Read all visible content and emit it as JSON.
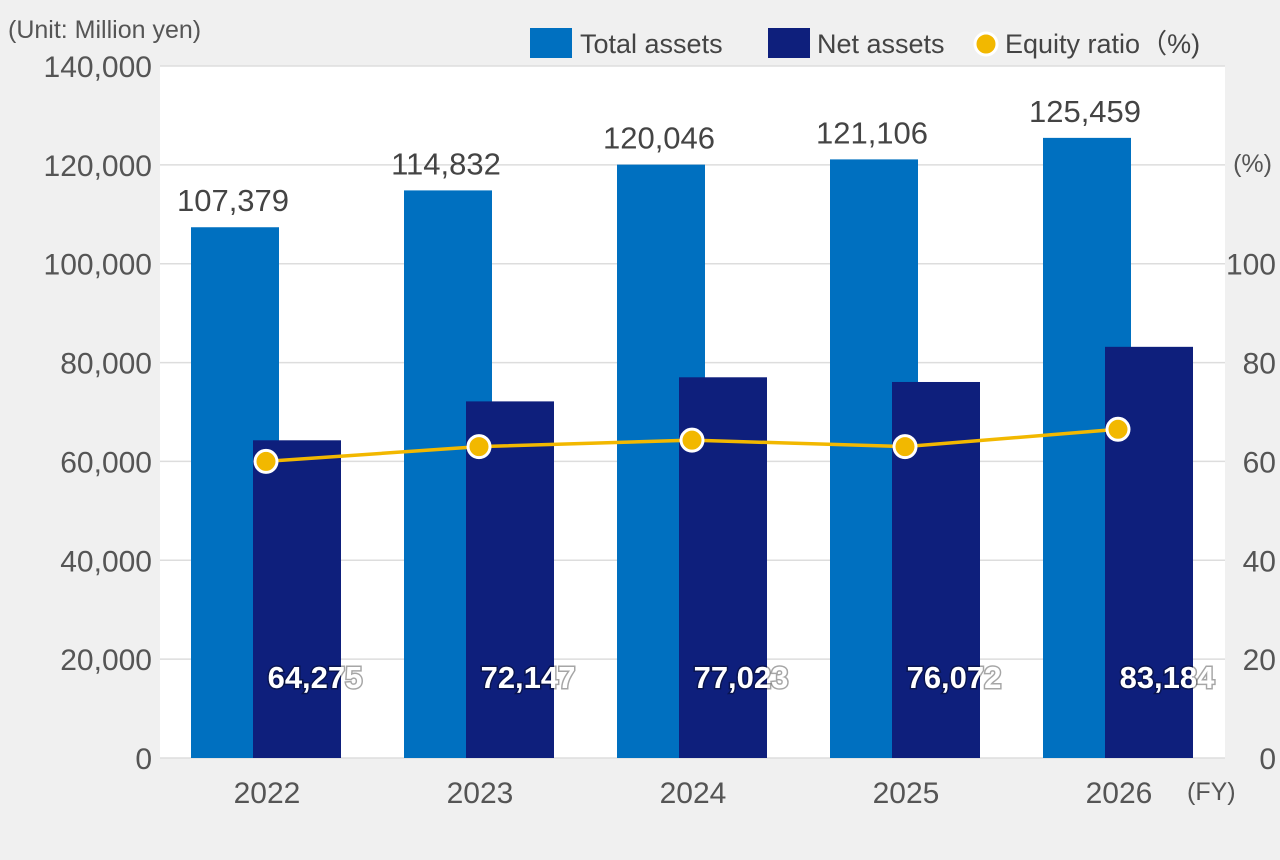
{
  "chart_data": {
    "type": "bar",
    "unit_label": "(Unit: Million yen)",
    "x_unit_label": "(FY)",
    "y2_unit_label": "(%)",
    "categories": [
      "2022",
      "2023",
      "2024",
      "2025",
      "2026"
    ],
    "series": [
      {
        "name": "Total assets",
        "type": "bar",
        "axis": "left",
        "color": "#0070c0",
        "values": [
          107379,
          114832,
          120046,
          121106,
          125459
        ],
        "labels": [
          "107,379",
          "114,832",
          "120,046",
          "121,106",
          "125,459"
        ]
      },
      {
        "name": "Net assets",
        "type": "bar",
        "axis": "left",
        "color": "#0e1f7c",
        "values": [
          64275,
          72147,
          77023,
          76072,
          83184
        ],
        "labels": [
          "64,275",
          "72,147",
          "77,023",
          "76,072",
          "83,184"
        ]
      },
      {
        "name": "Equity ratio（%)",
        "type": "line",
        "axis": "right",
        "color": "#f2b800",
        "values": [
          60.0,
          63.0,
          64.3,
          63.0,
          66.5
        ]
      }
    ],
    "y_left": {
      "min": 0,
      "max": 140000,
      "ticks": [
        0,
        20000,
        40000,
        60000,
        80000,
        100000,
        120000,
        140000
      ],
      "tick_labels": [
        "0",
        "20,000",
        "40,000",
        "60,000",
        "80,000",
        "100,000",
        "120,000",
        "140,000"
      ]
    },
    "y_right": {
      "min": 0,
      "max": 140,
      "ticks": [
        0,
        20,
        40,
        60,
        80,
        100
      ],
      "tick_labels": [
        "0",
        "20",
        "40",
        "60",
        "80",
        "100"
      ]
    },
    "grid": true,
    "legend_position": "top-right",
    "colors": {
      "background": "#f0f0f0",
      "plot_background": "#ffffff",
      "gridline": "#dddddd",
      "marker_stroke": "#ffffff"
    }
  }
}
